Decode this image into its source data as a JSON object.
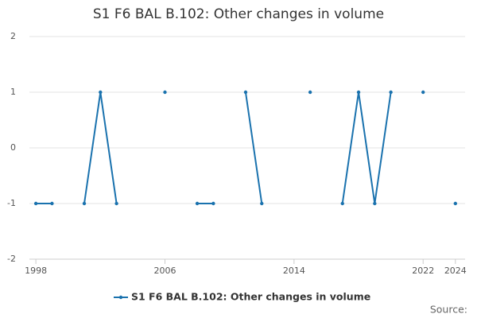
{
  "chart_data": {
    "type": "line",
    "title": "S1 F6 BAL B.102: Other changes in volume",
    "x": [
      1998,
      1999,
      2000,
      2001,
      2002,
      2003,
      2004,
      2005,
      2006,
      2007,
      2008,
      2009,
      2010,
      2011,
      2012,
      2013,
      2014,
      2015,
      2016,
      2017,
      2018,
      2019,
      2020,
      2021,
      2022,
      2023,
      2024
    ],
    "series": [
      {
        "name": "S1 F6 BAL B.102: Other changes in volume",
        "color": "#1a72ae",
        "values": [
          -1,
          -1,
          null,
          -1,
          1,
          -1,
          null,
          null,
          1,
          null,
          -1,
          -1,
          null,
          1,
          -1,
          null,
          null,
          1,
          null,
          -1,
          1,
          -1,
          1,
          null,
          1,
          null,
          -1
        ]
      }
    ],
    "xlim": [
      1997.6,
      2024.6
    ],
    "xticks": [
      1998,
      2006,
      2014,
      2022,
      2024
    ],
    "ylim": [
      -2,
      2
    ],
    "yticks": [
      -2,
      -1,
      0,
      1,
      2
    ],
    "grid": true,
    "legend": "bottom",
    "source": "Source:"
  }
}
